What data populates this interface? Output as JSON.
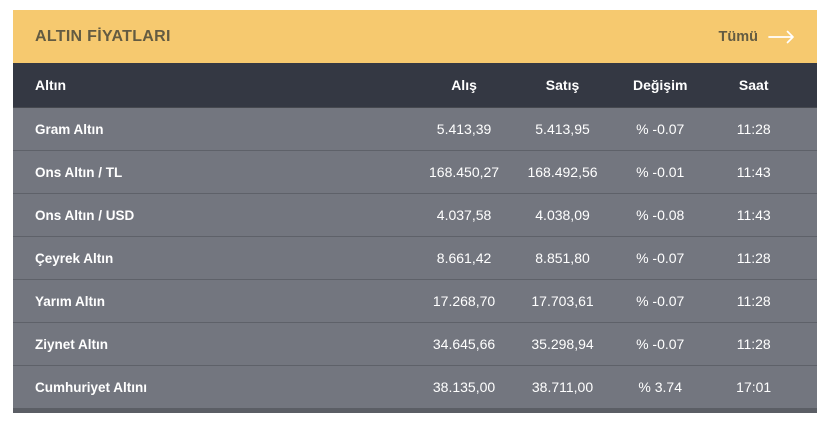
{
  "header": {
    "title": "ALTIN FİYATLARI",
    "all_label": "Tümü",
    "arrow_icon": "right-arrow",
    "background": "#F6C96F",
    "title_color": "#635B42"
  },
  "table": {
    "columns": [
      "Altın",
      "Alış",
      "Satış",
      "Değişim",
      "Saat"
    ],
    "rows": [
      {
        "name": "Gram Altın",
        "buy": "5.413,39",
        "sell": "5.413,95",
        "change": "% -0.07",
        "time": "11:28"
      },
      {
        "name": "Ons Altın / TL",
        "buy": "168.450,27",
        "sell": "168.492,56",
        "change": "% -0.01",
        "time": "11:43"
      },
      {
        "name": "Ons Altın / USD",
        "buy": "4.037,58",
        "sell": "4.038,09",
        "change": "% -0.08",
        "time": "11:43"
      },
      {
        "name": "Çeyrek Altın",
        "buy": "8.661,42",
        "sell": "8.851,80",
        "change": "% -0.07",
        "time": "11:28"
      },
      {
        "name": "Yarım Altın",
        "buy": "17.268,70",
        "sell": "17.703,61",
        "change": "% -0.07",
        "time": "11:28"
      },
      {
        "name": "Ziynet Altın",
        "buy": "34.645,66",
        "sell": "35.298,94",
        "change": "% -0.07",
        "time": "11:28"
      },
      {
        "name": "Cumhuriyet Altını",
        "buy": "38.135,00",
        "sell": "38.711,00",
        "change": "% 3.74",
        "time": "17:01"
      }
    ]
  },
  "colors": {
    "accent_gold": "#F6C96F",
    "table_header_bg": "#343843",
    "row_bg": "#73767F",
    "row_divider": "#5E6169",
    "card_bottom_edge": "#5B5E65",
    "text_on_dark": "#FFFFFF",
    "page_bg": "#FFFFFF"
  }
}
